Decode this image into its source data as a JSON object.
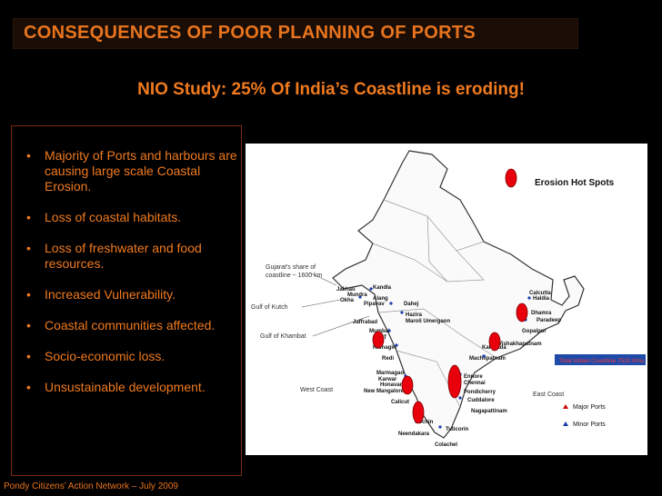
{
  "header": {
    "title": "CONSEQUENCES OF POOR PLANNING OF PORTS"
  },
  "subtitle": "NIO Study: 25% Of India’s Coastline is eroding!",
  "bullets": [
    "Majority of Ports and harbours are causing large scale Coastal Erosion.",
    "Loss of coastal habitats.",
    "Loss of freshwater and food resources.",
    "Increased Vulnerability.",
    "Coastal communities affected.",
    "Socio-economic loss.",
    "Unsustainable development."
  ],
  "map": {
    "legend_hotspot": "Erosion Hot Spots",
    "total_coastline": "Total Indian Coastline 7510 Kms",
    "gujarat_note": [
      "Gujarat's share of",
      "coastline ~ 1600 km"
    ],
    "gulf_kutch": "Gulf of Kutch",
    "gulf_khambat": "Gulf of Khambat",
    "west_coast": "West Coast",
    "east_coast": "East Coast",
    "legend_major": "Major Ports",
    "legend_minor": "Minor Ports",
    "ports": {
      "jakhau": "Jakhau",
      "mundra": "Mundra",
      "okha": "Okha",
      "kandla": "Kandla",
      "alang": "Alang",
      "pipavav": "Pipavav",
      "dahej": "Dahej",
      "jaffrabad": "Jaffrabad",
      "hazira": "Hazira",
      "maroli": "Maroli Umergaon",
      "mumbai": "Mumbai",
      "jnpt": "JNPT",
      "ratnagiri": "Ratnagiri",
      "redi": "Redi",
      "marmagao": "Marmagao",
      "karwar": "Karwar",
      "honavar": "Honavar",
      "new_mangalore": "New Mangalore",
      "calicut": "Calicut",
      "cochin": "Cochin",
      "neendakara": "Neendakara",
      "colachel": "Colachel",
      "tuticorin": "Tuticorin",
      "nagapattinam": "Nagapattinam",
      "cuddalore": "Cuddalore",
      "pondicherry": "Pondicherry",
      "ennore": "Ennore",
      "chennai": "Chennai",
      "machlipatnam": "Machlipatnam",
      "kakinada": "Kakinada",
      "vishakhapatnam": "Vishakhapatnam",
      "gopalpur": "Gopalpur",
      "paradeep": "Paradeep",
      "dhamra": "Dhamra",
      "haldia": "Haldia",
      "calcutta": "Calcutta"
    }
  },
  "footer": "Pondy Citizens’ Action Network – July  2009",
  "colors": {
    "accent": "#f07a1e",
    "background": "#000000",
    "hotspot": "#e8000c"
  }
}
